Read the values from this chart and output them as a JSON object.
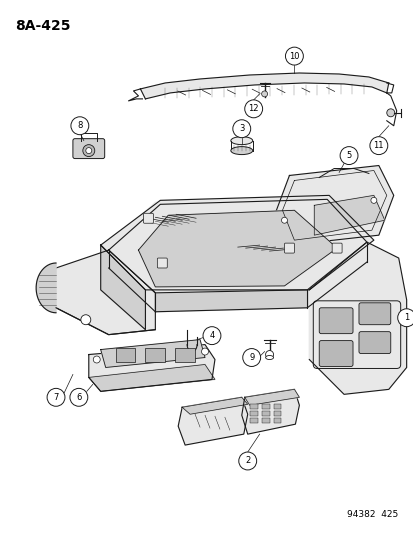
{
  "title": "8A-425",
  "footer": "94382  425",
  "bg": "#ffffff",
  "lc": "#1a1a1a",
  "fig_w": 4.14,
  "fig_h": 5.33,
  "dpi": 100
}
